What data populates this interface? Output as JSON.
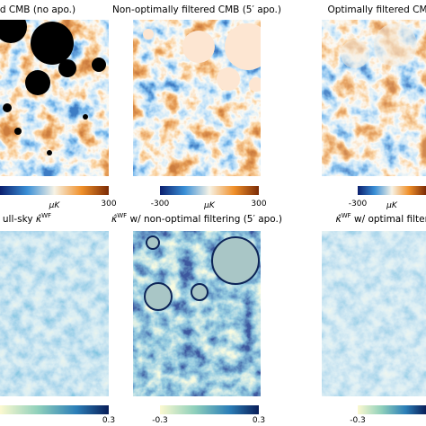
{
  "top_panels": [
    {
      "title": "d CMB (no apo.)",
      "colorbar": {
        "ticks": [
          "300"
        ],
        "unit": "μK"
      }
    },
    {
      "title": "Non-optimally filtered CMB (5′ apo.)",
      "colorbar": {
        "ticks": [
          "-300",
          "300"
        ],
        "unit": "μK"
      }
    },
    {
      "title": "Optimally filtered CM",
      "colorbar": {
        "ticks": [
          "-300"
        ],
        "unit": "μK"
      }
    }
  ],
  "bottom_panels": [
    {
      "title": {
        "prefix": "ull-sky ",
        "symbol": "κ̂",
        "sup": "WF",
        "suffix": ""
      },
      "colorbar": {
        "ticks": [
          "0.3"
        ]
      }
    },
    {
      "title": {
        "prefix": "",
        "symbol": "κ̂",
        "sup": "WF",
        "suffix": " w/ non-optimal filtering (5′ apo.)"
      },
      "colorbar": {
        "ticks": [
          "-0.3",
          "0.3"
        ]
      }
    },
    {
      "title": {
        "prefix": "",
        "symbol": "κ̂",
        "sup": "WF",
        "suffix": " w/ optimal filterin"
      },
      "colorbar": {
        "ticks": [
          "-0.3"
        ]
      }
    }
  ]
}
